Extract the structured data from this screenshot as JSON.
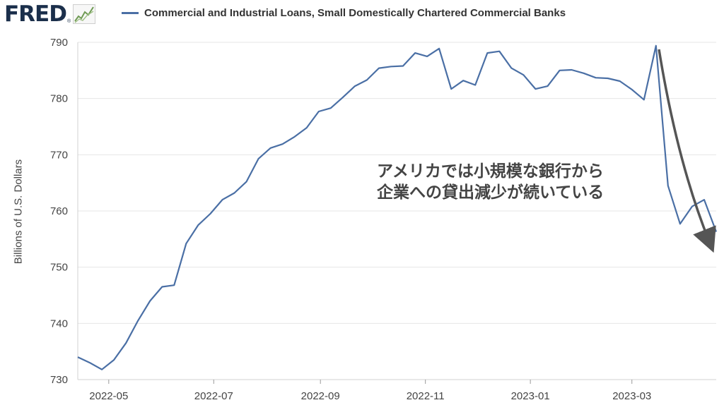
{
  "logo": {
    "text": "FRED",
    "reg": "®",
    "icon": "fred-line-chart-icon"
  },
  "colors": {
    "series": "#4a6fa5",
    "grid": "#e6e6e6",
    "arrow": "#555555",
    "text": "#444444"
  },
  "chart_data": {
    "type": "line",
    "ylabel": "Billions of U.S. Dollars",
    "ylim": [
      730,
      790
    ],
    "y_ticks": [
      "790",
      "780",
      "770",
      "760",
      "750",
      "740",
      "730"
    ],
    "x_ticks": [
      "2022-05",
      "2022-07",
      "2022-09",
      "2022-11",
      "2023-01",
      "2023-03"
    ],
    "grid": "horizontal",
    "series": [
      {
        "name": "Commercial and Industrial Loans, Small Domestically Chartered Commercial Banks",
        "x": [
          "2022-04-13",
          "2022-04-20",
          "2022-04-27",
          "2022-05-04",
          "2022-05-11",
          "2022-05-18",
          "2022-05-25",
          "2022-06-01",
          "2022-06-08",
          "2022-06-15",
          "2022-06-22",
          "2022-06-29",
          "2022-07-06",
          "2022-07-13",
          "2022-07-20",
          "2022-07-27",
          "2022-08-03",
          "2022-08-10",
          "2022-08-17",
          "2022-08-24",
          "2022-08-31",
          "2022-09-07",
          "2022-09-14",
          "2022-09-21",
          "2022-09-28",
          "2022-10-05",
          "2022-10-12",
          "2022-10-19",
          "2022-10-26",
          "2022-11-02",
          "2022-11-09",
          "2022-11-16",
          "2022-11-23",
          "2022-11-30",
          "2022-12-07",
          "2022-12-14",
          "2022-12-21",
          "2022-12-28",
          "2023-01-04",
          "2023-01-11",
          "2023-01-18",
          "2023-01-25",
          "2023-02-01",
          "2023-02-08",
          "2023-02-15",
          "2023-02-22",
          "2023-03-01",
          "2023-03-08",
          "2023-03-15",
          "2023-03-22",
          "2023-03-29",
          "2023-04-05",
          "2023-04-12",
          "2023-04-19"
        ],
        "values": [
          734.0,
          733.0,
          731.8,
          733.5,
          736.5,
          740.5,
          744.0,
          746.5,
          746.8,
          754.2,
          757.5,
          759.5,
          762.0,
          763.2,
          765.2,
          769.3,
          771.2,
          771.9,
          773.2,
          774.8,
          777.7,
          778.3,
          780.2,
          782.2,
          783.3,
          785.4,
          785.7,
          785.8,
          788.1,
          787.5,
          788.9,
          781.7,
          783.2,
          782.4,
          788.1,
          788.4,
          785.4,
          784.2,
          781.7,
          782.2,
          785.0,
          785.1,
          784.5,
          783.7,
          783.6,
          783.1,
          781.6,
          779.8,
          789.4,
          764.5,
          757.7,
          760.8,
          762.0,
          756.3
        ]
      }
    ],
    "annotation": [
      "アメリカでは小規模な銀行から",
      "企業への貸出減少が続いている"
    ]
  }
}
